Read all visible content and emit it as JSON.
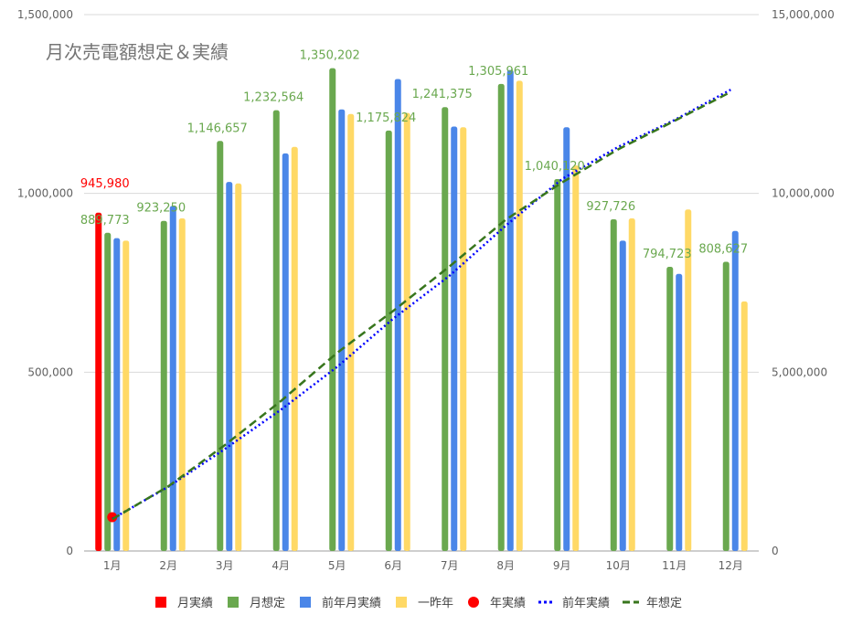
{
  "chart_data": {
    "type": "bar",
    "title": "月次売電額想定＆実績",
    "categories": [
      "1月",
      "2月",
      "3月",
      "4月",
      "5月",
      "6月",
      "7月",
      "8月",
      "9月",
      "10月",
      "11月",
      "12月"
    ],
    "y_left": {
      "ylim": [
        0,
        1500000
      ],
      "ticks": [
        0,
        500000,
        1000000,
        1500000
      ],
      "tick_labels": [
        "0",
        "500,000",
        "1,000,000",
        "1,500,000"
      ]
    },
    "y_right": {
      "ylim": [
        0,
        15000000
      ],
      "ticks": [
        0,
        5000000,
        10000000,
        15000000
      ],
      "tick_labels": [
        "0",
        "5,000,000",
        "10,000,000",
        "15,000,000"
      ]
    },
    "grid": true,
    "legend_position": "bottom",
    "bar_series": [
      {
        "name": "月実績",
        "color": "#ff0000",
        "values": [
          945980,
          null,
          null,
          null,
          null,
          null,
          null,
          null,
          null,
          null,
          null,
          null
        ]
      },
      {
        "name": "月想定",
        "color": "#6aa84f",
        "values": [
          889773,
          923250,
          1146657,
          1232564,
          1350202,
          1175824,
          1241375,
          1305961,
          1040120,
          927726,
          794723,
          808627
        ]
      },
      {
        "name": "前年月実績",
        "color": "#4a86e8",
        "values": [
          875000,
          965000,
          1032000,
          1112000,
          1235000,
          1320000,
          1187000,
          1345000,
          1185000,
          868000,
          775000,
          895000
        ]
      },
      {
        "name": "一昨年",
        "color": "#ffd966",
        "values": [
          868000,
          930000,
          1028000,
          1130000,
          1222000,
          1225000,
          1185000,
          1315000,
          1078000,
          930000,
          955000,
          698000
        ]
      }
    ],
    "line_series": [
      {
        "name": "年実績",
        "color": "#ff0000",
        "axis": "right",
        "style": "dot-marker",
        "values": [
          945980,
          null,
          null,
          null,
          null,
          null,
          null,
          null,
          null,
          null,
          null,
          null
        ]
      },
      {
        "name": "前年実績",
        "color": "#0000ff",
        "axis": "right",
        "style": "dotted",
        "values": [
          900000,
          1800000,
          2850000,
          3950000,
          5150000,
          6500000,
          7700000,
          9100000,
          10400000,
          11300000,
          12050000,
          12900000
        ]
      },
      {
        "name": "年想定",
        "color": "#38761d",
        "axis": "right",
        "style": "dashed",
        "values": [
          889773,
          1813023,
          2959680,
          4192244,
          5542446,
          6718270,
          7959645,
          9265606,
          10305726,
          11233452,
          12028175,
          12836802
        ]
      }
    ],
    "data_labels": [
      {
        "text": "945,980",
        "color": "#ff0000",
        "index": 0,
        "value": 945980,
        "lift": 2
      },
      {
        "text": "889,773",
        "color": "#6aa84f",
        "index": 0,
        "value": 889773,
        "lift": 1
      },
      {
        "text": "923,250",
        "color": "#6aa84f",
        "index": 1,
        "value": 923250,
        "lift": 1
      },
      {
        "text": "1,146,657",
        "color": "#6aa84f",
        "index": 2,
        "value": 1146657,
        "lift": 1
      },
      {
        "text": "1,232,564",
        "color": "#6aa84f",
        "index": 3,
        "value": 1232564,
        "lift": 1
      },
      {
        "text": "1,350,202",
        "color": "#6aa84f",
        "index": 4,
        "value": 1350202,
        "lift": 1
      },
      {
        "text": "1,175,824",
        "color": "#6aa84f",
        "index": 5,
        "value": 1175824,
        "lift": 1
      },
      {
        "text": "1,241,375",
        "color": "#6aa84f",
        "index": 6,
        "value": 1241375,
        "lift": 1
      },
      {
        "text": "1,305,961",
        "color": "#6aa84f",
        "index": 7,
        "value": 1305961,
        "lift": 1
      },
      {
        "text": "1,040,120",
        "color": "#6aa84f",
        "index": 8,
        "value": 1040120,
        "lift": 1
      },
      {
        "text": "927,726",
        "color": "#6aa84f",
        "index": 9,
        "value": 927726,
        "lift": 1
      },
      {
        "text": "794,723",
        "color": "#6aa84f",
        "index": 10,
        "value": 794723,
        "lift": 1
      },
      {
        "text": "808,627",
        "color": "#6aa84f",
        "index": 11,
        "value": 808627,
        "lift": 1
      }
    ],
    "legend": [
      {
        "label": "月実績",
        "color": "#ff0000",
        "marker": "square"
      },
      {
        "label": "月想定",
        "color": "#6aa84f",
        "marker": "square"
      },
      {
        "label": "前年月実績",
        "color": "#4a86e8",
        "marker": "square"
      },
      {
        "label": "一昨年",
        "color": "#ffd966",
        "marker": "square"
      },
      {
        "label": "年実績",
        "color": "#ff0000",
        "marker": "circle"
      },
      {
        "label": "前年実績",
        "color": "#0000ff",
        "marker": "dotted-line"
      },
      {
        "label": "年想定",
        "color": "#38761d",
        "marker": "dashed-line"
      }
    ]
  }
}
